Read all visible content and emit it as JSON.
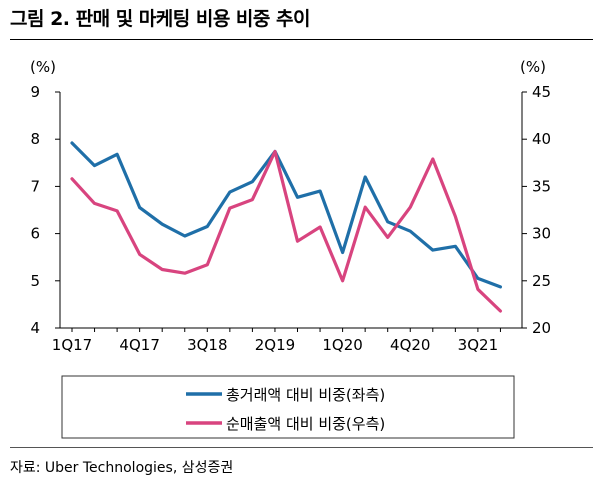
{
  "header": {
    "title": "그림 2. 판매 및 마케팅 비용 비중 추이"
  },
  "footer": {
    "source": "자료: Uber Technologies, 삼성증권"
  },
  "chart_data": {
    "type": "line",
    "left_unit": "(%)",
    "right_unit": "(%)",
    "x": [
      "1Q17",
      "2Q17",
      "3Q17",
      "4Q17",
      "1Q18",
      "2Q18",
      "3Q18",
      "4Q18",
      "1Q19",
      "2Q19",
      "3Q19",
      "4Q19",
      "1Q20",
      "2Q20",
      "3Q20",
      "4Q20",
      "1Q21",
      "2Q21",
      "3Q21",
      "4Q21"
    ],
    "x_tick_labels": [
      "1Q17",
      "4Q17",
      "3Q18",
      "2Q19",
      "1Q20",
      "4Q20",
      "3Q21"
    ],
    "y_left_ticks": [
      "9",
      "8",
      "7",
      "6",
      "5",
      "4"
    ],
    "y_right_ticks": [
      "45",
      "40",
      "35",
      "30",
      "25",
      "20"
    ],
    "ylim_left": [
      4,
      9
    ],
    "ylim_right": [
      20,
      45
    ],
    "legend_position": "bottom",
    "series": [
      {
        "name": "총거래액 대비 비중(좌측)",
        "axis": "left",
        "color": "#1F6FA8",
        "values": [
          7.92,
          7.44,
          7.68,
          6.55,
          6.2,
          5.95,
          6.15,
          6.88,
          7.1,
          7.74,
          6.77,
          6.9,
          5.6,
          7.2,
          6.25,
          6.05,
          5.65,
          5.73,
          5.05,
          4.87
        ]
      },
      {
        "name": "순매출액 대비 비중(우측)",
        "axis": "right",
        "color": "#D8447F",
        "values": [
          35.8,
          33.2,
          32.4,
          27.8,
          26.2,
          25.8,
          26.7,
          32.7,
          33.6,
          38.7,
          29.2,
          30.7,
          25.0,
          32.8,
          29.6,
          32.8,
          37.9,
          31.8,
          24.1,
          21.8
        ]
      }
    ]
  }
}
